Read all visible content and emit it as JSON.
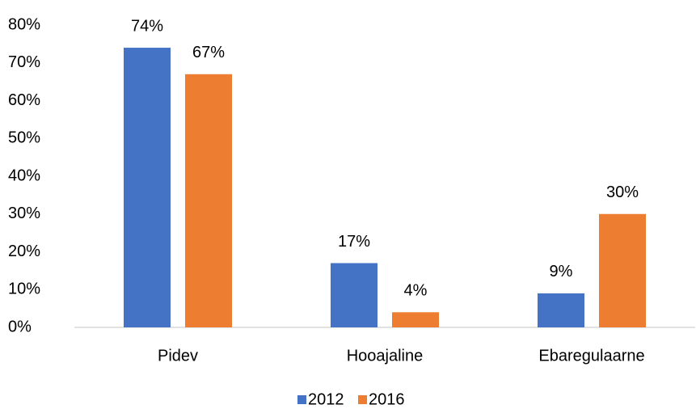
{
  "chart_data": {
    "type": "bar",
    "categories": [
      "Pidev",
      "Hooajaline",
      "Ebaregulaarne"
    ],
    "series": [
      {
        "name": "2012",
        "color": "#4472c4",
        "values": [
          74,
          17,
          9
        ],
        "value_labels": [
          "74%",
          "17%",
          "9%"
        ]
      },
      {
        "name": "2016",
        "color": "#ed7d31",
        "values": [
          67,
          4,
          30
        ],
        "value_labels": [
          "67%",
          "4%",
          "30%"
        ]
      }
    ],
    "ylim": [
      0,
      80
    ],
    "yticks": [
      {
        "value": 0,
        "label": "0%"
      },
      {
        "value": 10,
        "label": "10%"
      },
      {
        "value": 20,
        "label": "20%"
      },
      {
        "value": 30,
        "label": "30%"
      },
      {
        "value": 40,
        "label": "40%"
      },
      {
        "value": 50,
        "label": "50%"
      },
      {
        "value": 60,
        "label": "60%"
      },
      {
        "value": 70,
        "label": "70%"
      },
      {
        "value": 80,
        "label": "80%"
      }
    ],
    "grid": false,
    "legend": "bottom"
  }
}
